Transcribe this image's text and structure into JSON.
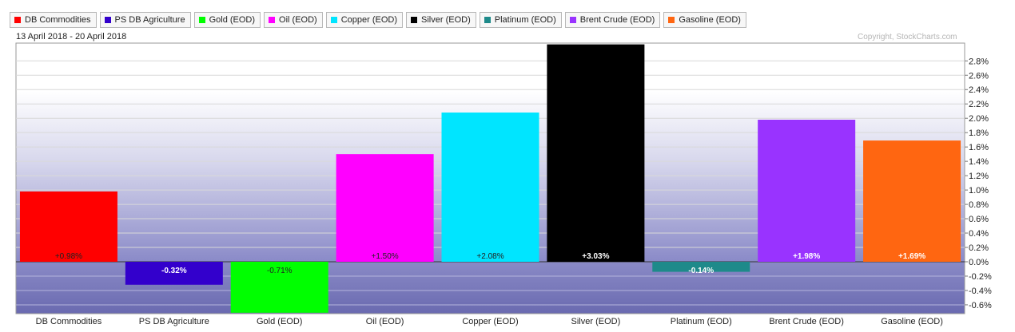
{
  "date_range": "13 April 2018 - 20 April 2018",
  "copyright": "Copyright, StockCharts.com",
  "legend": [
    {
      "name": "DB Commodities",
      "color": "#ff0000"
    },
    {
      "name": "PS DB Agriculture",
      "color": "#3300cc"
    },
    {
      "name": "Gold (EOD)",
      "color": "#00ff00"
    },
    {
      "name": "Oil (EOD)",
      "color": "#ff00ff"
    },
    {
      "name": "Copper (EOD)",
      "color": "#00e5ff"
    },
    {
      "name": "Silver (EOD)",
      "color": "#000000"
    },
    {
      "name": "Platinum (EOD)",
      "color": "#1e8a8a"
    },
    {
      "name": "Brent Crude (EOD)",
      "color": "#9933ff"
    },
    {
      "name": "Gasoline (EOD)",
      "color": "#ff6611"
    }
  ],
  "chart_data": {
    "type": "bar",
    "categories": [
      "DB Commodities",
      "PS DB Agriculture",
      "Gold (EOD)",
      "Oil (EOD)",
      "Copper (EOD)",
      "Silver (EOD)",
      "Platinum (EOD)",
      "Brent Crude (EOD)",
      "Gasoline (EOD)"
    ],
    "values": [
      0.98,
      -0.32,
      -0.71,
      1.5,
      2.08,
      3.03,
      -0.14,
      1.98,
      1.69
    ],
    "data_labels": [
      "+0.98%",
      "-0.32%",
      "-0.71%",
      "+1.50%",
      "+2.08%",
      "+3.03%",
      "-0.14%",
      "+1.98%",
      "+1.69%"
    ],
    "label_colors": [
      "#222222",
      "#ffffff",
      "#222222",
      "#222222",
      "#222222",
      "#ffffff",
      "#ffffff",
      "#ffffff",
      "#ffffff"
    ],
    "colors": [
      "#ff0000",
      "#3300cc",
      "#00ff00",
      "#ff00ff",
      "#00e5ff",
      "#000000",
      "#1e8a8a",
      "#9933ff",
      "#ff6611"
    ],
    "yticks": [
      -0.6,
      -0.4,
      -0.2,
      0.0,
      0.2,
      0.4,
      0.6,
      0.8,
      1.0,
      1.2,
      1.4,
      1.6,
      1.8,
      2.0,
      2.2,
      2.4,
      2.6,
      2.8
    ],
    "ytick_labels": [
      "-0.6%",
      "-0.4%",
      "-0.2%",
      "0.0%",
      "0.2%",
      "0.4%",
      "0.6%",
      "0.8%",
      "1.0%",
      "1.2%",
      "1.4%",
      "1.6%",
      "1.8%",
      "2.0%",
      "2.2%",
      "2.4%",
      "2.6%",
      "2.8%"
    ],
    "ylim": [
      -0.72,
      3.05
    ],
    "grid": true,
    "axis_position": "right"
  }
}
